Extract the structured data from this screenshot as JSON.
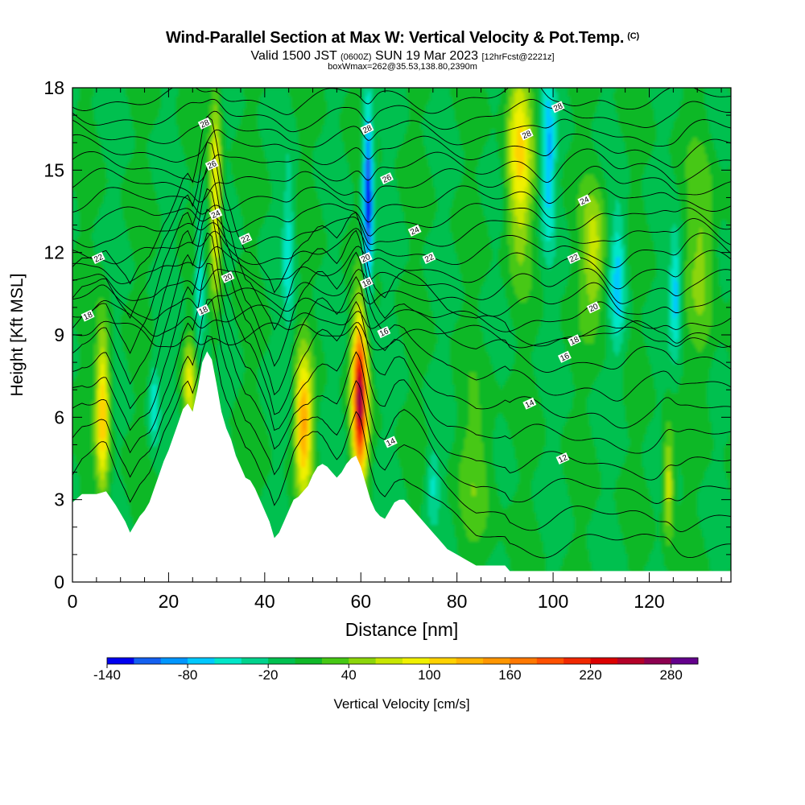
{
  "header": {
    "title": "Wind-Parallel Section at Max W: Vertical Velocity & Pot.Temp.",
    "title_mark": "(C)",
    "valid_a": "Valid 1500 JST ",
    "valid_z": "(0600Z)",
    "valid_b": " SUN 19 Mar 2023 ",
    "fcst": "[12hrFcst@2221z]",
    "boxinfo": "boxWmax=262@35.53,138.80,2390m"
  },
  "colors": {
    "terrain": "#ffffff",
    "background": "#0fbd3c",
    "contour": "#000000"
  },
  "chart_data": {
    "type": "heatmap",
    "xlabel": "Distance [nm]",
    "ylabel": "Height [Kft MSL]",
    "xlim": [
      0,
      137
    ],
    "ylim": [
      0,
      18
    ],
    "x_ticks": [
      0,
      20,
      40,
      60,
      80,
      100,
      120
    ],
    "y_ticks": [
      0,
      3,
      6,
      9,
      12,
      15,
      18
    ],
    "colorbar": {
      "label": "Vertical Velocity [cm/s]",
      "tick_labels": [
        "-140",
        "-80",
        "-20",
        "40",
        "100",
        "160",
        "220",
        "280"
      ],
      "levels": [
        -140,
        -120,
        -100,
        -80,
        -60,
        -40,
        -20,
        0,
        20,
        40,
        60,
        80,
        100,
        120,
        140,
        160,
        180,
        200,
        220,
        240,
        260,
        280
      ],
      "colors": [
        "#0000f0",
        "#1460f0",
        "#0096ff",
        "#00c8ff",
        "#00e6c8",
        "#00d28c",
        "#00c050",
        "#10b828",
        "#46c814",
        "#8cd50a",
        "#c8e600",
        "#f0f000",
        "#ffd200",
        "#ffb400",
        "#ff9600",
        "#ff7800",
        "#ff5000",
        "#f02800",
        "#dc0000",
        "#b40028",
        "#8c0050",
        "#64008c"
      ]
    },
    "terrain_kft": [
      [
        0,
        2.9
      ],
      [
        2,
        3.2
      ],
      [
        5,
        3.2
      ],
      [
        7,
        3.3
      ],
      [
        9,
        2.8
      ],
      [
        10,
        2.5
      ],
      [
        11,
        2.2
      ],
      [
        12,
        1.8
      ],
      [
        13,
        2.1
      ],
      [
        14,
        2.4
      ],
      [
        15,
        2.6
      ],
      [
        16,
        2.9
      ],
      [
        17,
        3.4
      ],
      [
        18,
        3.9
      ],
      [
        19,
        4.4
      ],
      [
        20,
        4.8
      ],
      [
        21,
        5.3
      ],
      [
        22,
        5.8
      ],
      [
        23,
        6.3
      ],
      [
        24,
        6.5
      ],
      [
        25,
        6.2
      ],
      [
        26,
        7.0
      ],
      [
        27,
        8.0
      ],
      [
        28,
        8.4
      ],
      [
        29,
        8.1
      ],
      [
        30,
        7.2
      ],
      [
        31,
        6.2
      ],
      [
        32,
        5.6
      ],
      [
        33,
        5.2
      ],
      [
        34,
        4.6
      ],
      [
        35,
        4.2
      ],
      [
        36,
        3.8
      ],
      [
        37,
        3.7
      ],
      [
        38,
        3.4
      ],
      [
        39,
        3.0
      ],
      [
        40,
        2.6
      ],
      [
        41,
        2.2
      ],
      [
        42,
        1.6
      ],
      [
        43,
        1.8
      ],
      [
        44,
        2.2
      ],
      [
        45,
        2.6
      ],
      [
        46,
        3.0
      ],
      [
        47,
        3.1
      ],
      [
        48,
        3.3
      ],
      [
        49,
        3.5
      ],
      [
        50,
        3.9
      ],
      [
        51,
        4.2
      ],
      [
        52,
        4.3
      ],
      [
        53,
        4.2
      ],
      [
        54,
        4.0
      ],
      [
        55,
        3.8
      ],
      [
        56,
        4.0
      ],
      [
        57,
        4.3
      ],
      [
        58,
        4.5
      ],
      [
        59,
        4.6
      ],
      [
        60,
        4.2
      ],
      [
        61,
        3.6
      ],
      [
        62,
        3.0
      ],
      [
        63,
        2.6
      ],
      [
        64,
        2.4
      ],
      [
        65,
        2.3
      ],
      [
        66,
        2.6
      ],
      [
        67,
        2.9
      ],
      [
        68,
        3.0
      ],
      [
        69,
        3.0
      ],
      [
        70,
        2.8
      ],
      [
        71,
        2.6
      ],
      [
        72,
        2.4
      ],
      [
        73,
        2.2
      ],
      [
        74,
        2.0
      ],
      [
        75,
        1.8
      ],
      [
        76,
        1.6
      ],
      [
        77,
        1.4
      ],
      [
        78,
        1.2
      ],
      [
        79,
        1.1
      ],
      [
        80,
        1.0
      ],
      [
        81,
        0.9
      ],
      [
        82,
        0.8
      ],
      [
        83,
        0.7
      ],
      [
        84,
        0.6
      ],
      [
        90,
        0.6
      ],
      [
        91,
        0.4
      ],
      [
        137,
        0.4
      ]
    ],
    "updrafts": [
      {
        "x": 6.3,
        "z": 6.2,
        "w": 120,
        "sx": 1.4,
        "sz": 3.0
      },
      {
        "x": 24.3,
        "z": 7.3,
        "w": 80,
        "sx": 1.2,
        "sz": 1.6
      },
      {
        "x": 29.8,
        "z": 14.0,
        "w": 100,
        "sx": 1.2,
        "sz": 3.8
      },
      {
        "x": 48.1,
        "z": 5.8,
        "w": 140,
        "sx": 1.7,
        "sz": 2.4
      },
      {
        "x": 59.8,
        "z": 6.7,
        "w": 262,
        "sx": 1.5,
        "sz": 2.8
      },
      {
        "x": 93.0,
        "z": 15.5,
        "w": 100,
        "sx": 2.6,
        "sz": 3.5
      },
      {
        "x": 108.5,
        "z": 12.0,
        "w": 70,
        "sx": 2.5,
        "sz": 2.5
      },
      {
        "x": 124.0,
        "z": 3.6,
        "w": 80,
        "sx": 1.1,
        "sz": 2.0
      },
      {
        "x": 84.0,
        "z": 4.0,
        "w": 30,
        "sx": 4.0,
        "sz": 3.0
      },
      {
        "x": 131.0,
        "z": 12.0,
        "w": 45,
        "sx": 3.0,
        "sz": 4.0
      }
    ],
    "downdrafts": [
      {
        "x": 61.5,
        "z": 14.0,
        "w": -140,
        "sx": 1.0,
        "sz": 3.5
      },
      {
        "x": 99.0,
        "z": 15.5,
        "w": -80,
        "sx": 1.4,
        "sz": 3.0
      },
      {
        "x": 26.5,
        "z": 11.0,
        "w": -60,
        "sx": 1.0,
        "sz": 2.5
      },
      {
        "x": 17.0,
        "z": 6.5,
        "w": -55,
        "sx": 1.0,
        "sz": 1.5
      },
      {
        "x": 113.5,
        "z": 11.0,
        "w": -70,
        "sx": 1.6,
        "sz": 2.5
      },
      {
        "x": 45.0,
        "z": 12.0,
        "w": -50,
        "sx": 1.2,
        "sz": 3.0
      },
      {
        "x": 125.5,
        "z": 10.5,
        "w": -75,
        "sx": 1.2,
        "sz": 2.0
      },
      {
        "x": 75.0,
        "z": 3.6,
        "w": -45,
        "sx": 1.4,
        "sz": 1.3
      }
    ],
    "theta_contour_labels": [
      {
        "text": "28",
        "x": 27.5,
        "y": 16.7
      },
      {
        "text": "26",
        "x": 29.0,
        "y": 15.2
      },
      {
        "text": "24",
        "x": 29.8,
        "y": 13.4
      },
      {
        "text": "22",
        "x": 36.0,
        "y": 12.5
      },
      {
        "text": "22",
        "x": 5.4,
        "y": 11.8
      },
      {
        "text": "20",
        "x": 32.3,
        "y": 11.1
      },
      {
        "text": "18",
        "x": 27.2,
        "y": 9.9
      },
      {
        "text": "18",
        "x": 3.2,
        "y": 9.7
      },
      {
        "text": "28",
        "x": 61.3,
        "y": 16.5
      },
      {
        "text": "26",
        "x": 65.4,
        "y": 14.7
      },
      {
        "text": "24",
        "x": 71.2,
        "y": 12.8
      },
      {
        "text": "22",
        "x": 74.2,
        "y": 11.8
      },
      {
        "text": "20",
        "x": 61.0,
        "y": 11.8
      },
      {
        "text": "18",
        "x": 61.2,
        "y": 10.9
      },
      {
        "text": "16",
        "x": 64.8,
        "y": 9.1
      },
      {
        "text": "28",
        "x": 101.0,
        "y": 17.3
      },
      {
        "text": "28",
        "x": 94.5,
        "y": 16.3
      },
      {
        "text": "24",
        "x": 106.5,
        "y": 13.9
      },
      {
        "text": "22",
        "x": 104.3,
        "y": 11.8
      },
      {
        "text": "20",
        "x": 108.4,
        "y": 10.0
      },
      {
        "text": "18",
        "x": 104.4,
        "y": 8.8
      },
      {
        "text": "16",
        "x": 102.4,
        "y": 8.2
      },
      {
        "text": "14",
        "x": 95.1,
        "y": 6.5
      },
      {
        "text": "14",
        "x": 66.2,
        "y": 5.1
      },
      {
        "text": "12",
        "x": 102.0,
        "y": 4.5
      }
    ]
  }
}
